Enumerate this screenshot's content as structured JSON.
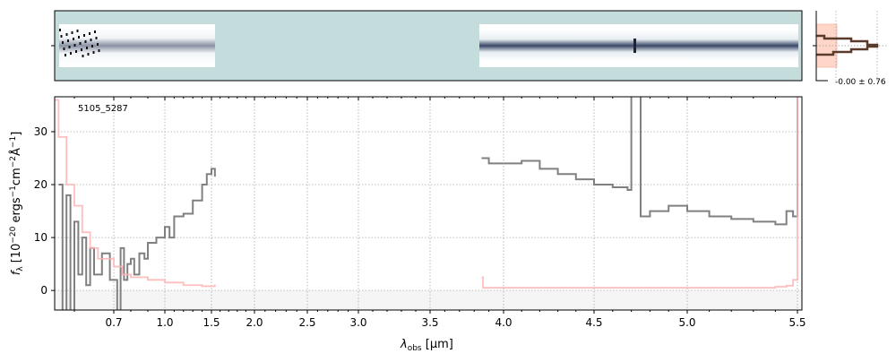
{
  "chart_data": {
    "type": "line",
    "label": "5105_5287",
    "xlabel_main": "λ",
    "xlabel_sub": "obs",
    "xlabel_unit": " [μm]",
    "ylabel": "f_λ [10^-20 ergs^-1 cm^-2 Å^-1]",
    "xlim": [
      0.55,
      5.52
    ],
    "ylim": [
      -3.7,
      36.6
    ],
    "xticks": [
      0.7,
      1.0,
      1.5,
      2.0,
      2.5,
      3.0,
      3.5,
      4.0,
      4.5,
      5.0,
      5.5
    ],
    "xtick_labels": [
      "0.7",
      "1.0",
      "1.5",
      "2.0",
      "2.5",
      "3.0",
      "3.5",
      "4.0",
      "4.5",
      "5.0",
      "5.5"
    ],
    "yticks": [
      0,
      10,
      20,
      30
    ],
    "ytick_labels": [
      "0",
      "10",
      "20",
      "30"
    ],
    "grid": true,
    "colors": {
      "flux": "#808080",
      "error": "#ffb3b3",
      "image_bg": "#c4dcdc",
      "hist": "#5a3a2a",
      "hist_fill": "#ffd6c8"
    },
    "series": [
      {
        "role": "flux",
        "segments": [
          [
            [
              0.56,
              20
            ],
            [
              0.57,
              -4
            ],
            [
              0.58,
              18
            ],
            [
              0.59,
              -4
            ],
            [
              0.6,
              13
            ],
            [
              0.61,
              3
            ],
            [
              0.62,
              10
            ],
            [
              0.63,
              1
            ],
            [
              0.64,
              8
            ],
            [
              0.65,
              3
            ],
            [
              0.67,
              7
            ],
            [
              0.69,
              2
            ],
            [
              0.7,
              2
            ],
            [
              0.72,
              -4
            ],
            [
              0.74,
              8
            ],
            [
              0.76,
              2
            ],
            [
              0.78,
              5
            ],
            [
              0.8,
              6
            ],
            [
              0.82,
              3
            ],
            [
              0.85,
              7
            ],
            [
              0.88,
              6
            ],
            [
              0.9,
              9
            ],
            [
              0.95,
              10
            ],
            [
              1.0,
              12
            ],
            [
              1.05,
              10
            ],
            [
              1.1,
              14
            ],
            [
              1.2,
              14.5
            ],
            [
              1.3,
              17
            ],
            [
              1.4,
              20
            ],
            [
              1.45,
              22
            ],
            [
              1.5,
              23
            ],
            [
              1.54,
              21.5
            ]
          ],
          [
            [
              3.85,
              25
            ],
            [
              3.9,
              24
            ],
            [
              4.0,
              24
            ],
            [
              4.1,
              24.5
            ],
            [
              4.2,
              23
            ],
            [
              4.3,
              22
            ],
            [
              4.4,
              21
            ],
            [
              4.5,
              20
            ],
            [
              4.6,
              19.5
            ],
            [
              4.68,
              19
            ],
            [
              4.7,
              37
            ],
            [
              4.73,
              37
            ],
            [
              4.75,
              14
            ],
            [
              4.8,
              15
            ],
            [
              4.9,
              16
            ],
            [
              5.0,
              15
            ],
            [
              5.1,
              14
            ],
            [
              5.2,
              13.5
            ],
            [
              5.3,
              13
            ],
            [
              5.4,
              12.5
            ],
            [
              5.45,
              15
            ],
            [
              5.48,
              14
            ],
            [
              5.5,
              40
            ]
          ]
        ]
      },
      {
        "role": "error",
        "segments": [
          [
            [
              0.55,
              36
            ],
            [
              0.56,
              29
            ],
            [
              0.58,
              20
            ],
            [
              0.6,
              16
            ],
            [
              0.62,
              11
            ],
            [
              0.64,
              8
            ],
            [
              0.66,
              6
            ],
            [
              0.7,
              4.5
            ],
            [
              0.75,
              3
            ],
            [
              0.8,
              2.5
            ],
            [
              0.9,
              2
            ],
            [
              1.0,
              1.5
            ],
            [
              1.2,
              1
            ],
            [
              1.4,
              0.8
            ],
            [
              1.54,
              1.1
            ]
          ],
          [
            [
              3.85,
              2.5
            ],
            [
              3.86,
              0.5
            ],
            [
              4.5,
              0.5
            ],
            [
              5.0,
              0.5
            ],
            [
              5.4,
              0.7
            ],
            [
              5.45,
              0.9
            ],
            [
              5.48,
              2
            ],
            [
              5.5,
              40
            ]
          ]
        ]
      }
    ],
    "side_panel": {
      "label": "-0.00 ± 0.76"
    }
  }
}
